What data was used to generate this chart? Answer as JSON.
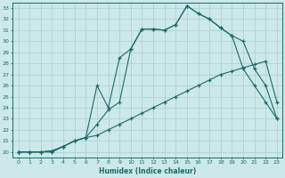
{
  "xlabel": "Humidex (Indice chaleur)",
  "bg_color": "#cce8e8",
  "line_color": "#1a6b6b",
  "grid_color": "#aacfcf",
  "xlim": [
    -0.5,
    23.5
  ],
  "ylim": [
    19.5,
    33.5
  ],
  "xticks": [
    0,
    1,
    2,
    3,
    4,
    5,
    6,
    7,
    8,
    9,
    10,
    11,
    12,
    13,
    14,
    15,
    16,
    17,
    18,
    19,
    20,
    21,
    22,
    23
  ],
  "yticks": [
    20,
    21,
    22,
    23,
    24,
    25,
    26,
    27,
    28,
    29,
    30,
    31,
    32,
    33
  ],
  "line1_x": [
    0,
    1,
    2,
    3,
    4,
    5,
    6,
    7,
    8,
    9,
    10,
    11,
    12,
    13,
    14,
    15,
    16,
    17,
    18,
    19,
    20,
    21,
    22,
    23
  ],
  "line1_y": [
    20.0,
    20.0,
    20.0,
    20.0,
    20.5,
    21.0,
    21.3,
    21.5,
    22.0,
    22.5,
    23.0,
    23.5,
    24.0,
    24.5,
    25.0,
    25.5,
    26.0,
    26.5,
    27.0,
    27.3,
    27.6,
    27.9,
    28.2,
    24.5
  ],
  "line2_x": [
    0,
    1,
    2,
    3,
    4,
    5,
    6,
    7,
    8,
    9,
    10,
    11,
    12,
    13,
    14,
    15,
    16,
    17,
    18,
    19,
    20,
    21,
    22,
    23
  ],
  "line2_y": [
    20.0,
    20.0,
    20.0,
    20.1,
    20.5,
    21.0,
    21.3,
    26.0,
    24.0,
    28.5,
    29.3,
    31.1,
    31.1,
    31.0,
    31.5,
    33.2,
    32.5,
    32.0,
    31.2,
    30.5,
    27.5,
    26.0,
    24.5,
    23.0
  ],
  "line3_x": [
    0,
    1,
    2,
    3,
    4,
    5,
    6,
    7,
    8,
    9,
    10,
    11,
    12,
    13,
    14,
    15,
    16,
    17,
    18,
    19,
    20,
    21,
    22,
    23
  ],
  "line3_y": [
    20.0,
    20.0,
    20.0,
    20.1,
    20.5,
    21.0,
    21.3,
    22.5,
    23.8,
    24.5,
    29.3,
    31.1,
    31.1,
    31.0,
    31.5,
    33.2,
    32.5,
    32.0,
    31.2,
    30.5,
    30.0,
    27.5,
    26.0,
    23.0
  ]
}
